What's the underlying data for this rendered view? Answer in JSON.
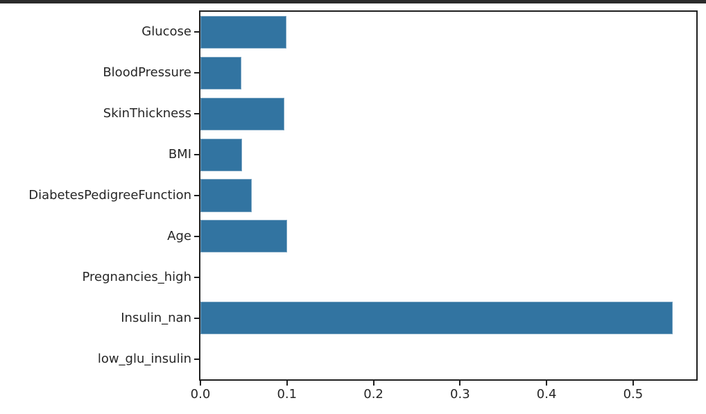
{
  "colors": {
    "bar": "#3274a1",
    "spine": "#1f1f1f",
    "text": "#262626",
    "top_strip": "#2b2b2b",
    "background": "#ffffff"
  },
  "chart_data": {
    "type": "bar",
    "orientation": "horizontal",
    "title": "",
    "xlabel": "",
    "ylabel": "",
    "grid": false,
    "legend": null,
    "categories": [
      "Glucose",
      "BloodPressure",
      "SkinThickness",
      "BMI",
      "DiabetesPedigreeFunction",
      "Age",
      "Pregnancies_high",
      "Insulin_nan",
      "low_glu_insulin"
    ],
    "values": [
      0.099,
      0.047,
      0.097,
      0.048,
      0.059,
      0.1,
      0.0,
      0.546,
      0.0
    ],
    "bar_fraction": 0.8,
    "xlim": [
      0.0,
      0.573
    ],
    "x_ticks": [
      0.0,
      0.1,
      0.2,
      0.3,
      0.4,
      0.5
    ],
    "x_tick_labels": [
      "0.0",
      "0.1",
      "0.2",
      "0.3",
      "0.4",
      "0.5"
    ]
  }
}
